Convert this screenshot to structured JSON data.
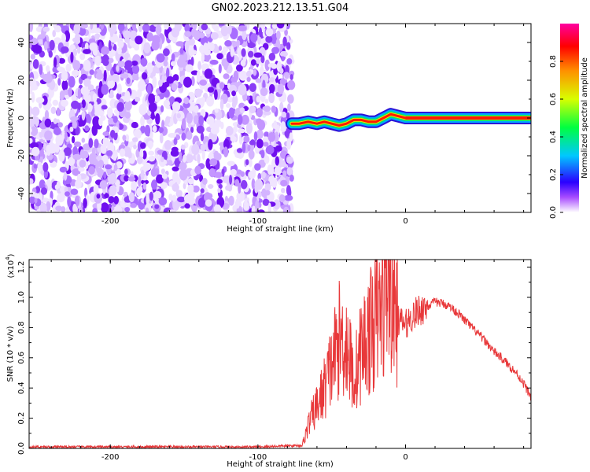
{
  "title": "GN02.2023.212.13.51.G04",
  "colorbar": {
    "label": "Normalized spectral amplitude",
    "ticks": [
      "0.0",
      "0.2",
      "0.4",
      "0.6",
      "0.8"
    ],
    "tick_values": [
      0.0,
      0.2,
      0.4,
      0.6,
      0.8
    ],
    "range": [
      0,
      1
    ]
  },
  "chart_data": [
    {
      "type": "heatmap",
      "xlabel": "Height of straight line (km)",
      "ylabel": "Frequency (Hz)",
      "xlim": [
        -255,
        85
      ],
      "ylim": [
        -50,
        50
      ],
      "x_ticks": [
        "-200",
        "-100",
        "0"
      ],
      "x_tick_values": [
        -200,
        -100,
        0
      ],
      "y_ticks": [
        "-40",
        "-20",
        "0",
        "20",
        "40"
      ],
      "y_tick_values": [
        -40,
        -20,
        0,
        20,
        40
      ],
      "noise_region_x": [
        -255,
        -77
      ],
      "signal_trace": {
        "x": [
          -77,
          -72,
          -66,
          -60,
          -55,
          -50,
          -45,
          -40,
          -35,
          -30,
          -25,
          -20,
          -15,
          -10,
          -5,
          0,
          5,
          10,
          20,
          40,
          60,
          80,
          85
        ],
        "y": [
          -3,
          -3,
          -2,
          -3,
          -2,
          -3,
          -4,
          -3,
          -1,
          -1,
          -2,
          -2,
          0,
          2,
          1,
          0,
          0,
          0,
          0,
          0,
          0,
          0,
          0
        ]
      }
    },
    {
      "type": "line",
      "xlabel": "Height of straight line (km)",
      "ylabel": "SNR (10 * v/v)",
      "y_multiplier": "(x10",
      "y_multiplier_exp": "4",
      "y_multiplier_close": ")",
      "xlim": [
        -255,
        85
      ],
      "ylim": [
        0,
        1.25
      ],
      "x_ticks": [
        "-200",
        "-100",
        "0"
      ],
      "x_tick_values": [
        -200,
        -100,
        0
      ],
      "y_ticks": [
        "0.0",
        "0.2",
        "0.4",
        "0.6",
        "0.8",
        "1.0",
        "1.2"
      ],
      "y_tick_values": [
        0.0,
        0.2,
        0.4,
        0.6,
        0.8,
        1.0,
        1.2
      ],
      "color": "#e8383a",
      "series": [
        {
          "x": [
            -255,
            -200,
            -150,
            -100,
            -70,
            -65,
            -60,
            -55,
            -50,
            -45,
            -40,
            -35,
            -30,
            -25,
            -20,
            -15,
            -12,
            -10,
            -5,
            0,
            5,
            10,
            15,
            20,
            25,
            30,
            35,
            40,
            45,
            50,
            55,
            60,
            65,
            70,
            75,
            80,
            85
          ],
          "y": [
            0.01,
            0.01,
            0.01,
            0.01,
            0.02,
            0.18,
            0.28,
            0.4,
            0.55,
            0.72,
            0.7,
            0.45,
            0.65,
            0.75,
            0.85,
            0.95,
            1.25,
            1.0,
            0.85,
            0.82,
            0.88,
            0.92,
            0.94,
            0.97,
            0.96,
            0.94,
            0.9,
            0.85,
            0.8,
            0.75,
            0.7,
            0.64,
            0.6,
            0.55,
            0.5,
            0.43,
            0.34
          ]
        }
      ]
    }
  ]
}
